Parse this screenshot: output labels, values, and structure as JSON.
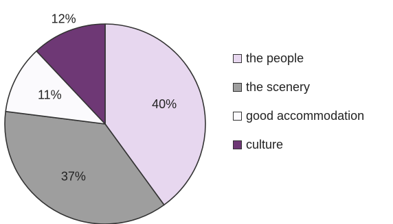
{
  "chart_data": {
    "type": "pie",
    "title": "",
    "slices": [
      {
        "label": "the people",
        "value": 40,
        "display": "40%",
        "color": "#e7d7ef"
      },
      {
        "label": "the scenery",
        "value": 37,
        "display": "37%",
        "color": "#9e9e9e"
      },
      {
        "label": "good accommodation",
        "value": 11,
        "display": "11%",
        "color": "#fbfafd"
      },
      {
        "label": "culture",
        "value": 12,
        "display": "12%",
        "color": "#6e3875"
      }
    ],
    "start_angle_deg": 0,
    "direction": "clockwise",
    "legend_position": "right",
    "slice_border_color": "#333333"
  }
}
